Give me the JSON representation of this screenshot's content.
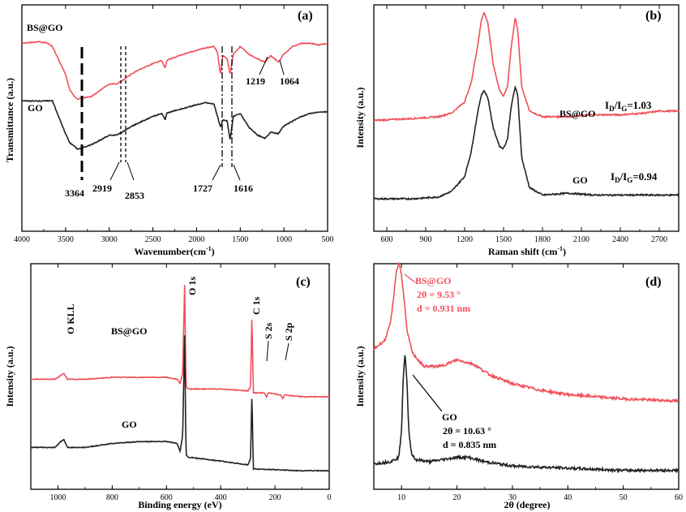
{
  "colors": {
    "bsgo": "#f0505a",
    "go": "#222222",
    "axis": "#000000"
  },
  "panels": {
    "a": {
      "tag": "(a)",
      "xlabel": "Wavenumber(cm",
      "xlabel_sup": "-1",
      "xlabel_end": ")",
      "ylabel": "Transmittance (a.u.)",
      "bsgo_label": "BS@GO",
      "go_label": "GO",
      "marks": [
        "3364",
        "2919",
        "2853",
        "1727",
        "1616",
        "1219",
        "1064"
      ]
    },
    "b": {
      "tag": "(b)",
      "xlabel": "Raman shift (cm",
      "xlabel_sup": "-1",
      "xlabel_end": ")",
      "ylabel": "Intensity (a.u.)",
      "bsgo_label": "BS@GO",
      "go_label": "GO",
      "bsgo_ratio": "I",
      "ratio_d": "D",
      "ratio_slash": "/I",
      "ratio_g": "G",
      "bsgo_ratio_val": "=1.03",
      "go_ratio_val": "=0.94"
    },
    "c": {
      "tag": "(c)",
      "xlabel": "Binding energy (eV)",
      "ylabel": "Intensity (a.u.)",
      "bsgo_label": "BS@GO",
      "go_label": "GO",
      "peaks": [
        "O KLL",
        "O 1s",
        "C 1s",
        "S 2s",
        "S 2p"
      ]
    },
    "d": {
      "tag": "(d)",
      "xlabel": "2θ (degree)",
      "ylabel": "Intensity (a.u.)",
      "bsgo_label": "BS@GO",
      "bsgo_theta": "2θ = 9.53 °",
      "bsgo_d": "d = 0.931 nm",
      "go_label": "GO",
      "go_theta": "2θ = 10.63 °",
      "go_d": "d = 0.835 nm"
    }
  },
  "chart_data": [
    {
      "type": "line",
      "panel": "a",
      "xlabel": "Wavenumber(cm-1)",
      "ylabel": "Transmittance (a.u.)",
      "xlim": [
        4000,
        500
      ],
      "x_reversed": true,
      "xticks": [
        4000,
        3500,
        3000,
        2500,
        2000,
        1500,
        1000,
        500
      ],
      "series": [
        {
          "name": "BS@GO",
          "color": "#f0505a",
          "x": [
            4000,
            3800,
            3700,
            3650,
            3600,
            3500,
            3450,
            3400,
            3364,
            3300,
            3200,
            3100,
            3000,
            2919,
            2853,
            2700,
            2500,
            2400,
            2360,
            2340,
            2300,
            2100,
            1900,
            1800,
            1760,
            1727,
            1700,
            1650,
            1616,
            1580,
            1500,
            1400,
            1300,
            1219,
            1150,
            1064,
            1000,
            900,
            800,
            700,
            600,
            500
          ],
          "y": [
            0.92,
            0.93,
            0.92,
            0.9,
            0.84,
            0.72,
            0.62,
            0.58,
            0.56,
            0.57,
            0.58,
            0.62,
            0.66,
            0.66,
            0.68,
            0.74,
            0.79,
            0.81,
            0.76,
            0.81,
            0.82,
            0.86,
            0.89,
            0.9,
            0.86,
            0.72,
            0.84,
            0.82,
            0.72,
            0.85,
            0.9,
            0.85,
            0.82,
            0.8,
            0.84,
            0.8,
            0.85,
            0.9,
            0.92,
            0.92,
            0.91,
            0.92
          ]
        },
        {
          "name": "GO",
          "color": "#222222",
          "x": [
            4000,
            3800,
            3700,
            3650,
            3600,
            3500,
            3450,
            3400,
            3364,
            3300,
            3200,
            3100,
            3000,
            2919,
            2853,
            2700,
            2500,
            2400,
            2360,
            2340,
            2300,
            2100,
            1900,
            1800,
            1760,
            1727,
            1700,
            1650,
            1616,
            1580,
            1500,
            1400,
            1300,
            1219,
            1150,
            1064,
            1000,
            900,
            800,
            700,
            600,
            500
          ],
          "y": [
            0.55,
            0.55,
            0.55,
            0.55,
            0.48,
            0.34,
            0.28,
            0.26,
            0.24,
            0.25,
            0.27,
            0.3,
            0.33,
            0.33,
            0.35,
            0.4,
            0.45,
            0.47,
            0.43,
            0.47,
            0.48,
            0.51,
            0.54,
            0.53,
            0.45,
            0.38,
            0.43,
            0.42,
            0.3,
            0.45,
            0.47,
            0.38,
            0.33,
            0.31,
            0.35,
            0.34,
            0.39,
            0.42,
            0.45,
            0.47,
            0.48,
            0.48
          ]
        }
      ]
    },
    {
      "type": "line",
      "panel": "b",
      "xlabel": "Raman shift (cm-1)",
      "ylabel": "Intensity (a.u.)",
      "xlim": [
        500,
        2850
      ],
      "xticks": [
        600,
        900,
        1200,
        1500,
        1800,
        2100,
        2400,
        2700
      ],
      "series": [
        {
          "name": "BS@GO",
          "color": "#f0505a",
          "x": [
            500,
            800,
            1000,
            1100,
            1200,
            1250,
            1300,
            1330,
            1350,
            1380,
            1420,
            1470,
            1500,
            1530,
            1560,
            1590,
            1610,
            1640,
            1700,
            1800,
            2000,
            2200,
            2400,
            2600,
            2700,
            2850
          ],
          "y": [
            0.42,
            0.43,
            0.44,
            0.46,
            0.52,
            0.62,
            0.82,
            0.96,
            1.0,
            0.94,
            0.72,
            0.58,
            0.55,
            0.6,
            0.82,
            0.97,
            0.9,
            0.6,
            0.47,
            0.44,
            0.44,
            0.45,
            0.45,
            0.46,
            0.47,
            0.47
          ]
        },
        {
          "name": "GO",
          "color": "#222222",
          "x": [
            500,
            800,
            1000,
            1100,
            1200,
            1250,
            1300,
            1330,
            1350,
            1380,
            1420,
            1470,
            1500,
            1530,
            1560,
            1590,
            1610,
            1640,
            1700,
            1800,
            2000,
            2200,
            2400,
            2600,
            2700,
            2850
          ],
          "y": [
            0.0,
            0.0,
            0.01,
            0.04,
            0.12,
            0.25,
            0.46,
            0.56,
            0.58,
            0.54,
            0.38,
            0.28,
            0.27,
            0.32,
            0.5,
            0.6,
            0.55,
            0.22,
            0.06,
            0.02,
            0.03,
            0.02,
            0.02,
            0.02,
            0.02,
            0.02
          ]
        }
      ]
    },
    {
      "type": "line",
      "panel": "c",
      "xlabel": "Binding energy (eV)",
      "ylabel": "Intensity (a.u.)",
      "xlim": [
        1100,
        0
      ],
      "x_reversed": true,
      "xticks": [
        1000,
        800,
        600,
        400,
        200,
        0
      ],
      "series": [
        {
          "name": "BS@GO",
          "color": "#f0505a",
          "x": [
            1100,
            1010,
            990,
            978,
            965,
            900,
            800,
            700,
            600,
            560,
            550,
            540,
            533,
            528,
            520,
            400,
            300,
            290,
            285,
            280,
            240,
            230,
            225,
            180,
            170,
            165,
            100,
            0
          ],
          "y": [
            0.49,
            0.49,
            0.51,
            0.52,
            0.49,
            0.49,
            0.5,
            0.5,
            0.5,
            0.49,
            0.47,
            0.52,
            0.98,
            0.45,
            0.44,
            0.44,
            0.43,
            0.45,
            0.84,
            0.42,
            0.42,
            0.4,
            0.42,
            0.41,
            0.39,
            0.41,
            0.4,
            0.4
          ]
        },
        {
          "name": "GO",
          "color": "#222222",
          "x": [
            1100,
            1010,
            990,
            978,
            965,
            900,
            800,
            700,
            600,
            560,
            550,
            540,
            533,
            528,
            520,
            400,
            300,
            290,
            285,
            280,
            100,
            0
          ],
          "y": [
            0.14,
            0.14,
            0.17,
            0.18,
            0.14,
            0.14,
            0.16,
            0.17,
            0.17,
            0.16,
            0.12,
            0.2,
            0.72,
            0.1,
            0.09,
            0.07,
            0.05,
            0.08,
            0.43,
            0.03,
            0.02,
            0.02
          ]
        }
      ]
    },
    {
      "type": "line",
      "panel": "d",
      "xlabel": "2θ (degree)",
      "ylabel": "Intensity (a.u.)",
      "xlim": [
        5,
        60
      ],
      "xticks": [
        10,
        20,
        30,
        40,
        50,
        60
      ],
      "series": [
        {
          "name": "BS@GO",
          "color": "#f0505a",
          "x": [
            5,
            7,
            8,
            8.5,
            9,
            9.53,
            10,
            10.5,
            11,
            12,
            14,
            17,
            20,
            23,
            26,
            30,
            35,
            40,
            45,
            50,
            55,
            60
          ],
          "y": [
            0.58,
            0.62,
            0.7,
            0.8,
            0.93,
            0.98,
            0.92,
            0.8,
            0.66,
            0.56,
            0.5,
            0.5,
            0.53,
            0.51,
            0.46,
            0.42,
            0.39,
            0.37,
            0.36,
            0.35,
            0.345,
            0.34
          ]
        },
        {
          "name": "GO",
          "color": "#222222",
          "x": [
            5,
            8,
            9.5,
            10,
            10.3,
            10.63,
            11,
            11.3,
            11.8,
            12.5,
            15,
            20,
            22,
            25,
            30,
            40,
            50,
            60
          ],
          "y": [
            0.05,
            0.06,
            0.08,
            0.2,
            0.45,
            0.56,
            0.42,
            0.2,
            0.1,
            0.07,
            0.06,
            0.08,
            0.08,
            0.06,
            0.04,
            0.03,
            0.02,
            0.02
          ]
        }
      ]
    }
  ]
}
